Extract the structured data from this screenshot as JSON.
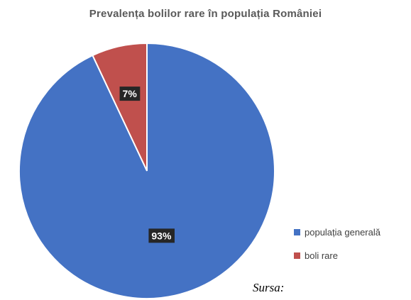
{
  "chart_data": {
    "type": "pie",
    "title": "Prevalența bolilor rare în populația României",
    "slices": [
      {
        "name": "populația generală",
        "value": 93,
        "label": "93%",
        "color": "#4472C4"
      },
      {
        "name": "boli rare",
        "value": 7,
        "label": "7%",
        "color": "#C0504D"
      }
    ],
    "start_angle_deg": 0,
    "direction": "counterclockwise",
    "legend_position": "right"
  },
  "source_label": "Sursa:"
}
